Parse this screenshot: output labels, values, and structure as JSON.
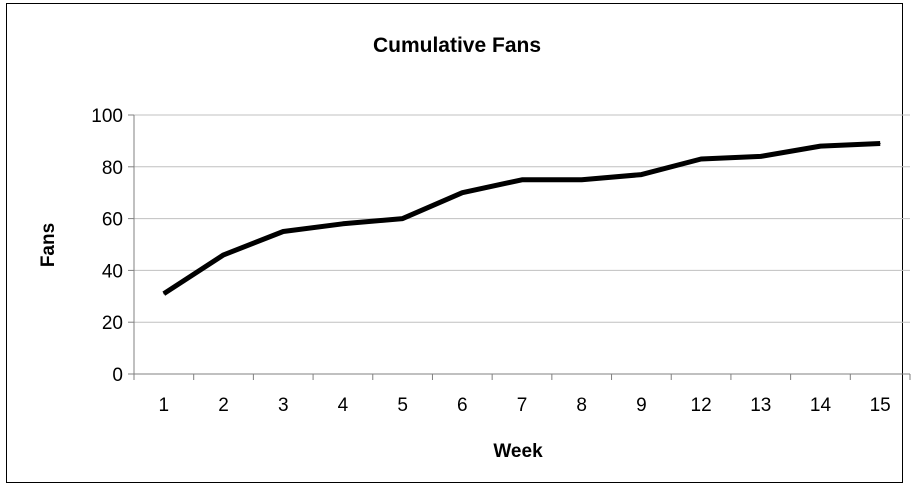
{
  "chart_data": {
    "type": "line",
    "title": "Cumulative Fans",
    "xlabel": "Week",
    "ylabel": "Fans",
    "categories": [
      "1",
      "2",
      "3",
      "4",
      "5",
      "6",
      "7",
      "8",
      "9",
      "12",
      "13",
      "14",
      "15"
    ],
    "series": [
      {
        "values": [
          31,
          46,
          55,
          58,
          60,
          70,
          75,
          75,
          77,
          83,
          84,
          88,
          89
        ],
        "color": "#000000"
      }
    ],
    "ylim": [
      0,
      100
    ],
    "yticks": [
      "0",
      "20",
      "40",
      "60",
      "80",
      "100"
    ],
    "grid": true,
    "legend": "none",
    "colors": {
      "line": "#000000",
      "grid": "#c0c0c0",
      "axis": "#808080"
    }
  }
}
